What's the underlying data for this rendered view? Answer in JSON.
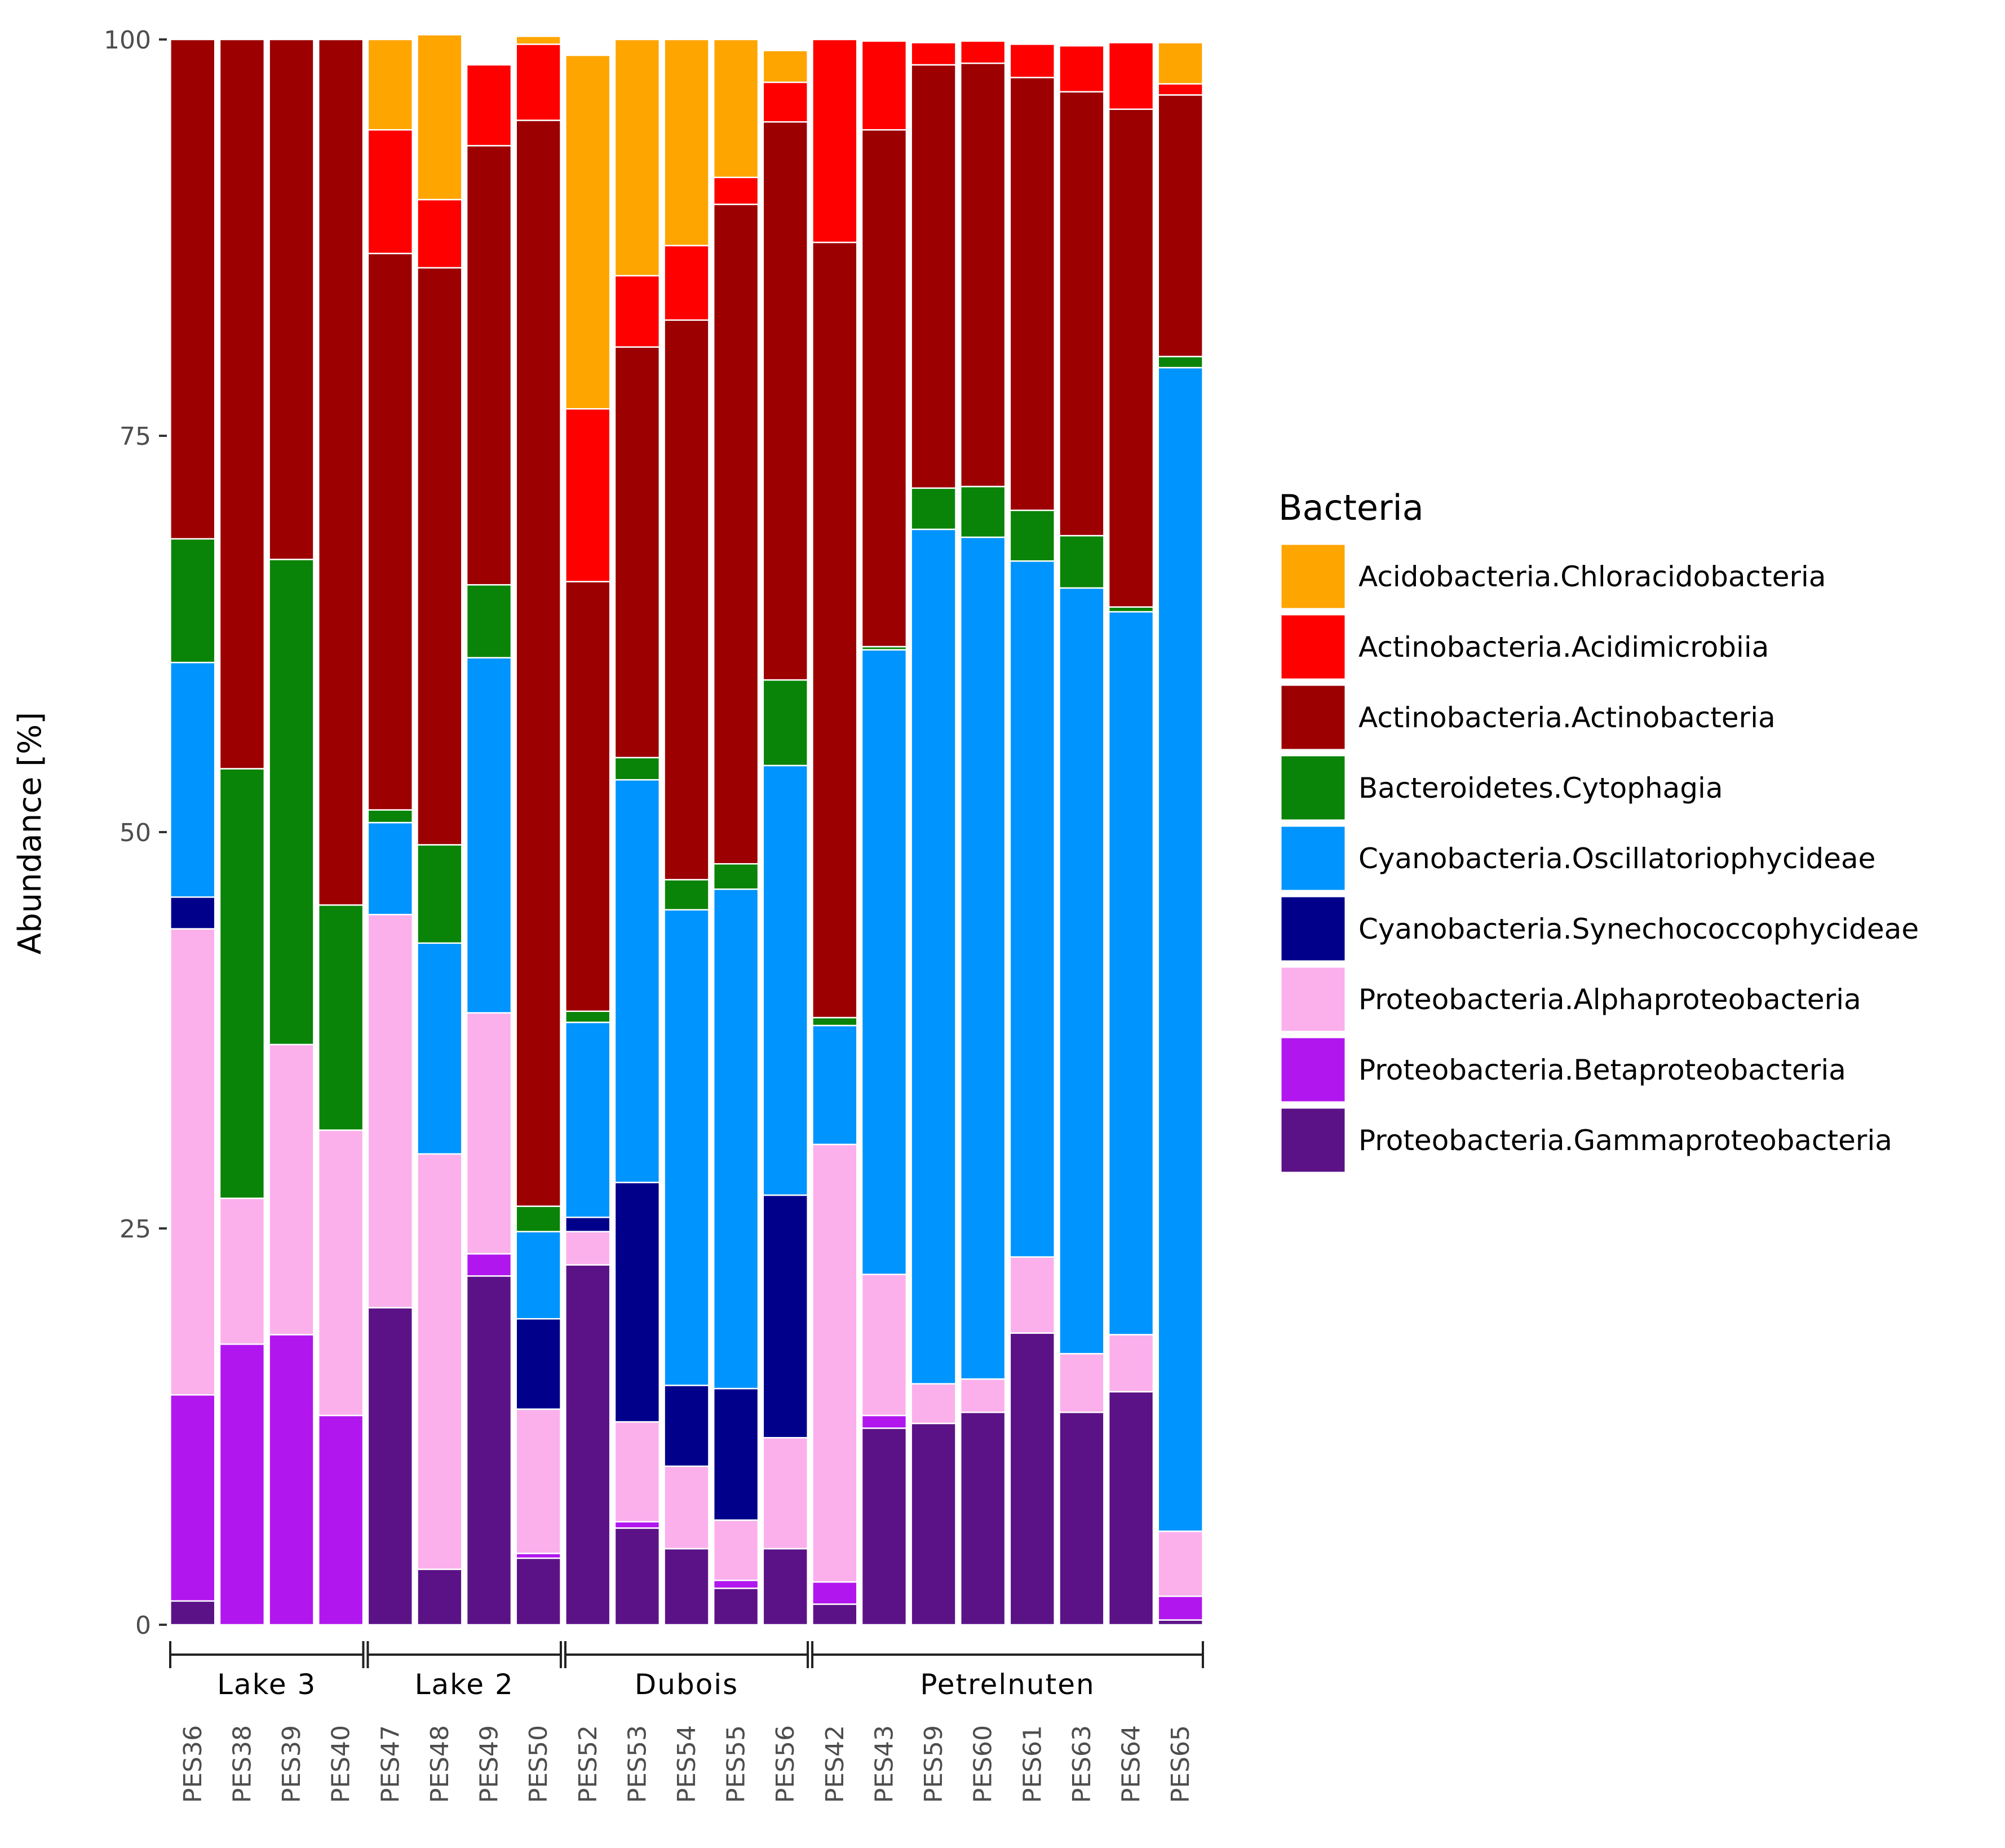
{
  "chart_data": {
    "type": "bar",
    "stacked": true,
    "ylabel": "Abundance [%]",
    "xlabel": "",
    "ylim": [
      0,
      100
    ],
    "yticks": [
      0,
      25,
      50,
      75,
      100
    ],
    "legend_title": "Bacteria",
    "legend_position": "right",
    "categories": [
      "PES36",
      "PES38",
      "PES39",
      "PES40",
      "PES47",
      "PES48",
      "PES49",
      "PES50",
      "PES52",
      "PES53",
      "PES54",
      "PES55",
      "PES56",
      "PES42",
      "PES43",
      "PES59",
      "PES60",
      "PES61",
      "PES63",
      "PES64",
      "PES65"
    ],
    "groups": [
      {
        "label": "Lake 3",
        "from": 0,
        "to": 3
      },
      {
        "label": "Lake 2",
        "from": 4,
        "to": 7
      },
      {
        "label": "Dubois",
        "from": 8,
        "to": 12
      },
      {
        "label": "Petrelnuten",
        "from": 13,
        "to": 20
      }
    ],
    "series": [
      {
        "name": "Proteobacteria.Gammaproteobacteria",
        "color": "#5c1287",
        "values": [
          1.5,
          0,
          0,
          0,
          20,
          3.5,
          22,
          4.2,
          22.7,
          6.1,
          4.8,
          2.3,
          4.8,
          1.3,
          12.4,
          12.7,
          13.4,
          18.4,
          13.4,
          14.7,
          0.3
        ]
      },
      {
        "name": "Proteobacteria.Betaproteobacteria",
        "color": "#b216ef",
        "values": [
          13,
          17.7,
          18.3,
          13.2,
          0,
          0,
          1.4,
          0.3,
          0,
          0.4,
          0,
          0.5,
          0,
          1.4,
          0.8,
          0,
          0,
          0,
          0,
          0,
          1.5
        ]
      },
      {
        "name": "Proteobacteria.Alphaproteobacteria",
        "color": "#fbb0ec",
        "values": [
          29.4,
          9.2,
          18.3,
          18,
          24.8,
          26.2,
          15.2,
          9.1,
          2.1,
          6.3,
          5.2,
          3.8,
          7,
          27.6,
          8.9,
          2.5,
          2.1,
          4.8,
          3.7,
          3.6,
          4.1
        ]
      },
      {
        "name": "Cyanobacteria.Synechococcophycideae",
        "color": "#00008b",
        "values": [
          2,
          0,
          0,
          0,
          0,
          0,
          0,
          5.7,
          0.9,
          15.1,
          5.1,
          8.3,
          15.3,
          0,
          0,
          0,
          0,
          0,
          0,
          0,
          0
        ]
      },
      {
        "name": "Cyanobacteria.Oscillatoriophycideae",
        "color": "#0094ff",
        "values": [
          14.8,
          0,
          0,
          0,
          5.8,
          13.3,
          22.4,
          5.5,
          12.3,
          25.4,
          30,
          31.5,
          27.1,
          7.5,
          39.4,
          53.9,
          53.1,
          43.9,
          48.3,
          45.6,
          73.4
        ]
      },
      {
        "name": "Bacteroidetes.Cytophagia",
        "color": "#0a8408",
        "values": [
          7.8,
          27.1,
          30.6,
          14.2,
          0.8,
          6.2,
          4.6,
          1.6,
          0.7,
          1.4,
          1.9,
          1.6,
          5.4,
          0.5,
          0.2,
          2.6,
          3.2,
          3.2,
          3.3,
          0.3,
          0.7
        ]
      },
      {
        "name": "Actinobacteria.Actinobacteria",
        "color": "#9c0000",
        "values": [
          31.5,
          46,
          32.8,
          54.6,
          35.1,
          36.4,
          27.7,
          68.5,
          27.1,
          25.9,
          35.3,
          41.6,
          35.2,
          48.9,
          32.6,
          26.7,
          26.7,
          27.3,
          28,
          31.4,
          16.5
        ]
      },
      {
        "name": "Actinobacteria.Acidimicrobiia",
        "color": "#fe0000",
        "values": [
          0,
          0,
          0,
          0,
          7.8,
          4.3,
          5.1,
          4.8,
          10.9,
          4.5,
          4.7,
          1.7,
          2.5,
          12.8,
          5.6,
          1.4,
          1.4,
          2.1,
          2.9,
          4.2,
          0.7
        ]
      },
      {
        "name": "Acidobacteria.Chloracidobacteria",
        "color": "#ffa500",
        "values": [
          0,
          0,
          0,
          0,
          5.7,
          10.4,
          0,
          0.5,
          22.3,
          14.9,
          13,
          8.7,
          2,
          0,
          0,
          0,
          0,
          0,
          0,
          0,
          2.6
        ]
      }
    ],
    "legend_order": [
      "Acidobacteria.Chloracidobacteria",
      "Actinobacteria.Acidimicrobiia",
      "Actinobacteria.Actinobacteria",
      "Bacteroidetes.Cytophagia",
      "Cyanobacteria.Oscillatoriophycideae",
      "Cyanobacteria.Synechococcophycideae",
      "Proteobacteria.Alphaproteobacteria",
      "Proteobacteria.Betaproteobacteria",
      "Proteobacteria.Gammaproteobacteria"
    ]
  }
}
